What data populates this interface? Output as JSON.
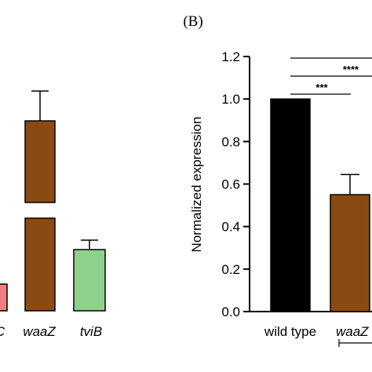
{
  "panel_label": "(B)",
  "chart_data": [
    {
      "type": "bar",
      "panel": "A (cropped)",
      "categories": [
        "C",
        "waaZ",
        "tviB"
      ],
      "values": [
        null,
        null,
        null
      ],
      "error": [
        null,
        null,
        null
      ],
      "colors": [
        "#f28080",
        "#8b4a12",
        "#8fd18a"
      ],
      "broken_axis": true,
      "title": "",
      "xlabel": "",
      "ylabel": ""
    },
    {
      "type": "bar",
      "panel": "B",
      "categories": [
        "wild type",
        "waaZ"
      ],
      "values": [
        1.0,
        0.55
      ],
      "error": [
        0.0,
        0.095
      ],
      "colors": [
        "#000000",
        "#8b4a12"
      ],
      "ylabel": "Normalized expression",
      "xlabel": "",
      "title": "",
      "ylim": [
        0.0,
        1.2
      ],
      "yticks": [
        "0.0",
        "0.2",
        "0.4",
        "0.6",
        "0.8",
        "1.0",
        "1.2"
      ],
      "significance": [
        "***",
        "****"
      ]
    }
  ]
}
